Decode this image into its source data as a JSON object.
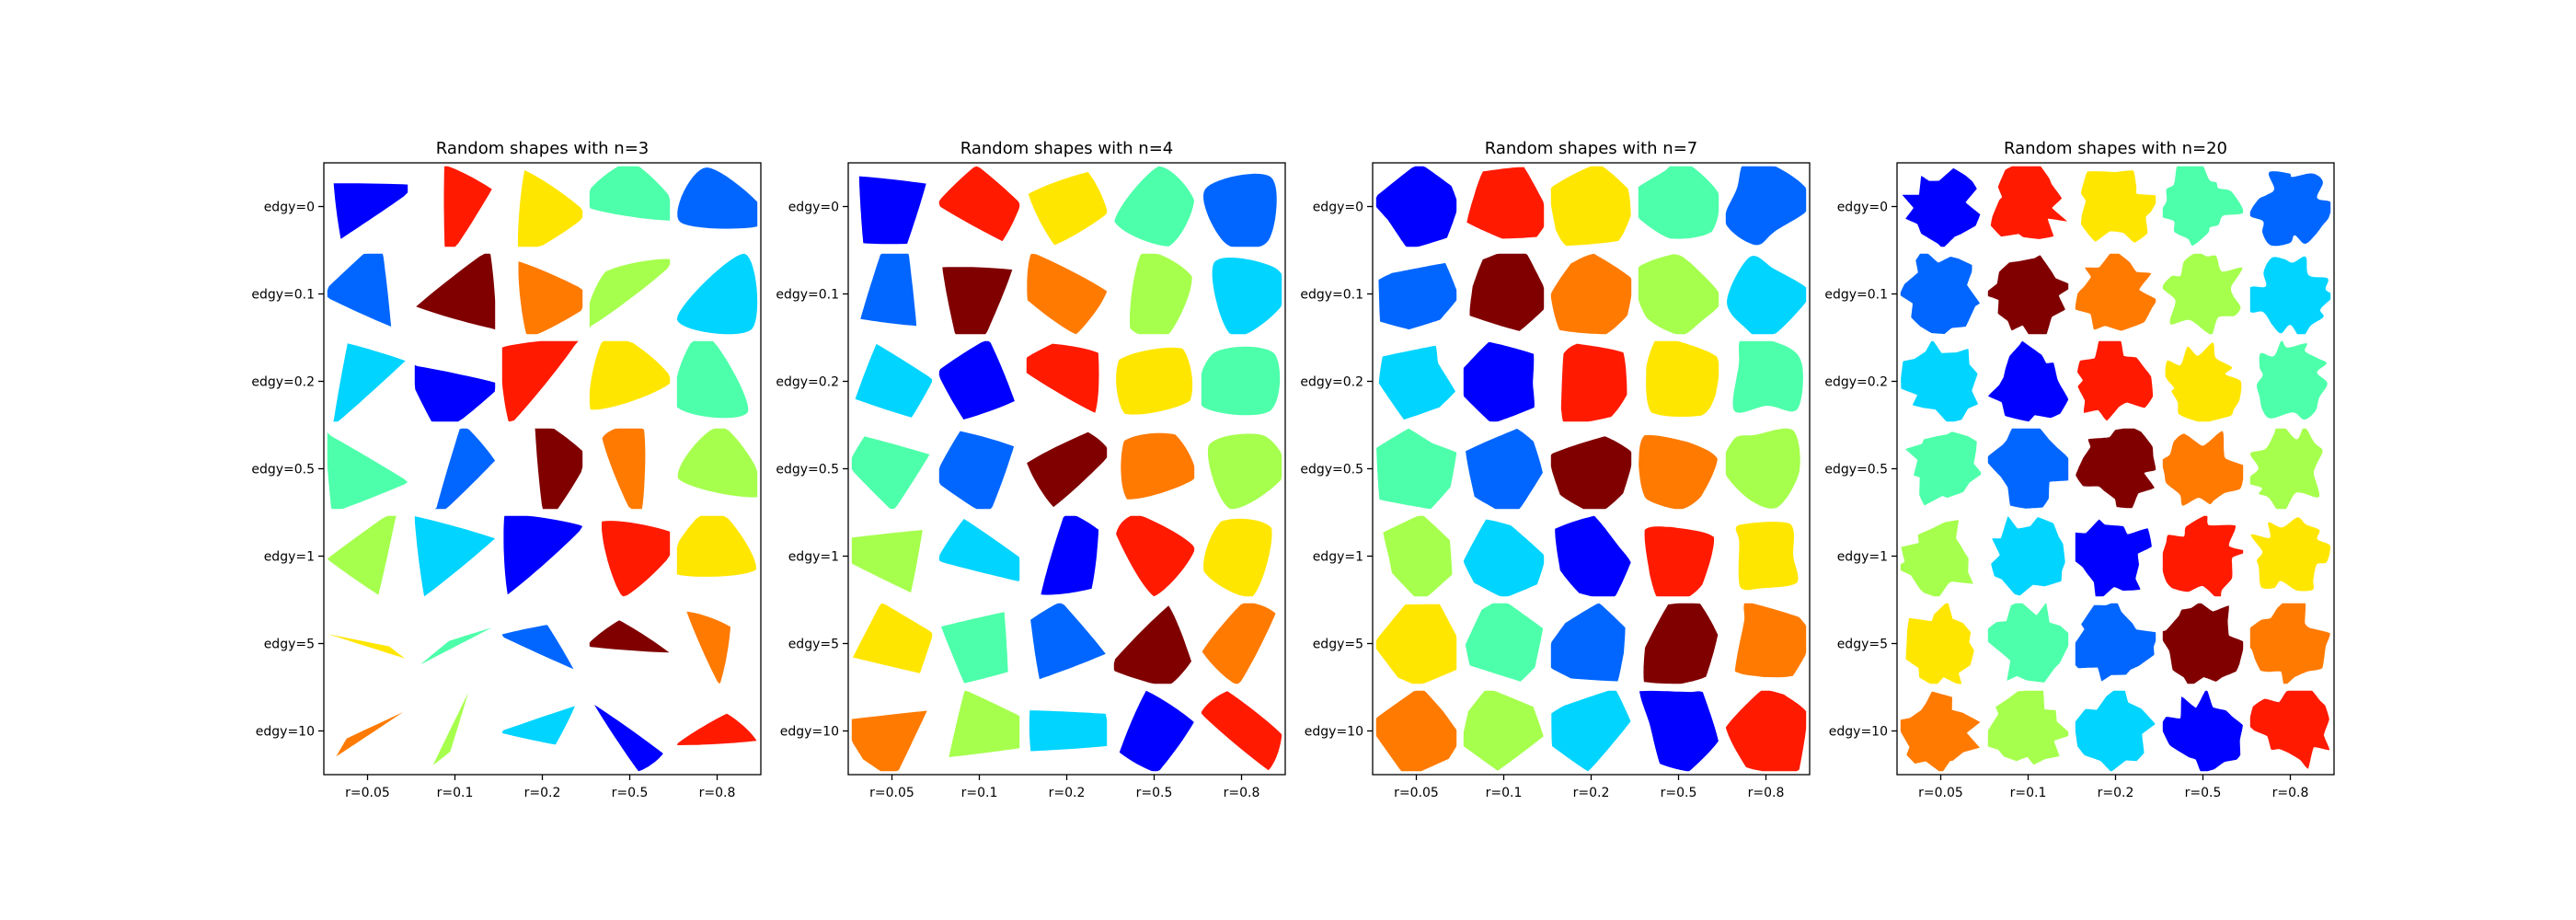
{
  "chart_data": {
    "type": "shape-grid",
    "colormap": "jet",
    "shape_colors": {
      "blue": "#0000ff",
      "azure": "#0066ff",
      "cyan": "#00d4ff",
      "aquamarine": "#4dffaa",
      "yellow-green": "#a6ff4d",
      "yellow": "#ffe600",
      "orange": "#ff7a00",
      "red": "#ff1a00",
      "maroon": "#800000"
    },
    "column_labels": [
      "r=0.05",
      "r=0.1",
      "r=0.2",
      "r=0.5",
      "r=0.8"
    ],
    "row_labels": [
      "edgy=0",
      "edgy=0.1",
      "edgy=0.2",
      "edgy=0.5",
      "edgy=1",
      "edgy=5",
      "edgy=10"
    ],
    "panels": [
      {
        "title": "Random shapes with n=3",
        "n": 3,
        "colors": [
          [
            "blue",
            "red",
            "yellow",
            "aquamarine",
            "azure"
          ],
          [
            "azure",
            "maroon",
            "orange",
            "yellow-green",
            "cyan"
          ],
          [
            "cyan",
            "blue",
            "red",
            "yellow",
            "aquamarine"
          ],
          [
            "aquamarine",
            "azure",
            "maroon",
            "orange",
            "yellow-green"
          ],
          [
            "yellow-green",
            "cyan",
            "blue",
            "red",
            "yellow"
          ],
          [
            "yellow",
            "aquamarine",
            "azure",
            "maroon",
            "orange"
          ],
          [
            "orange",
            "yellow-green",
            "cyan",
            "blue",
            "red"
          ]
        ]
      },
      {
        "title": "Random shapes with n=4",
        "n": 4,
        "colors": [
          [
            "blue",
            "red",
            "yellow",
            "aquamarine",
            "azure"
          ],
          [
            "azure",
            "maroon",
            "orange",
            "yellow-green",
            "cyan"
          ],
          [
            "cyan",
            "blue",
            "red",
            "yellow",
            "aquamarine"
          ],
          [
            "aquamarine",
            "azure",
            "maroon",
            "orange",
            "yellow-green"
          ],
          [
            "yellow-green",
            "cyan",
            "blue",
            "red",
            "yellow"
          ],
          [
            "yellow",
            "aquamarine",
            "azure",
            "maroon",
            "orange"
          ],
          [
            "orange",
            "yellow-green",
            "cyan",
            "blue",
            "red"
          ]
        ]
      },
      {
        "title": "Random shapes with n=7",
        "n": 7,
        "colors": [
          [
            "blue",
            "red",
            "yellow",
            "aquamarine",
            "azure"
          ],
          [
            "azure",
            "maroon",
            "orange",
            "yellow-green",
            "cyan"
          ],
          [
            "cyan",
            "blue",
            "red",
            "yellow",
            "aquamarine"
          ],
          [
            "aquamarine",
            "azure",
            "maroon",
            "orange",
            "yellow-green"
          ],
          [
            "yellow-green",
            "cyan",
            "blue",
            "red",
            "yellow"
          ],
          [
            "yellow",
            "aquamarine",
            "azure",
            "maroon",
            "orange"
          ],
          [
            "orange",
            "yellow-green",
            "cyan",
            "blue",
            "red"
          ]
        ]
      },
      {
        "title": "Random shapes with n=20",
        "n": 20,
        "colors": [
          [
            "blue",
            "red",
            "yellow",
            "aquamarine",
            "azure"
          ],
          [
            "azure",
            "maroon",
            "orange",
            "yellow-green",
            "cyan"
          ],
          [
            "cyan",
            "blue",
            "red",
            "yellow",
            "aquamarine"
          ],
          [
            "aquamarine",
            "azure",
            "maroon",
            "orange",
            "yellow-green"
          ],
          [
            "yellow-green",
            "cyan",
            "blue",
            "red",
            "yellow"
          ],
          [
            "yellow",
            "aquamarine",
            "azure",
            "maroon",
            "orange"
          ],
          [
            "orange",
            "yellow-green",
            "cyan",
            "blue",
            "red"
          ]
        ]
      }
    ]
  }
}
